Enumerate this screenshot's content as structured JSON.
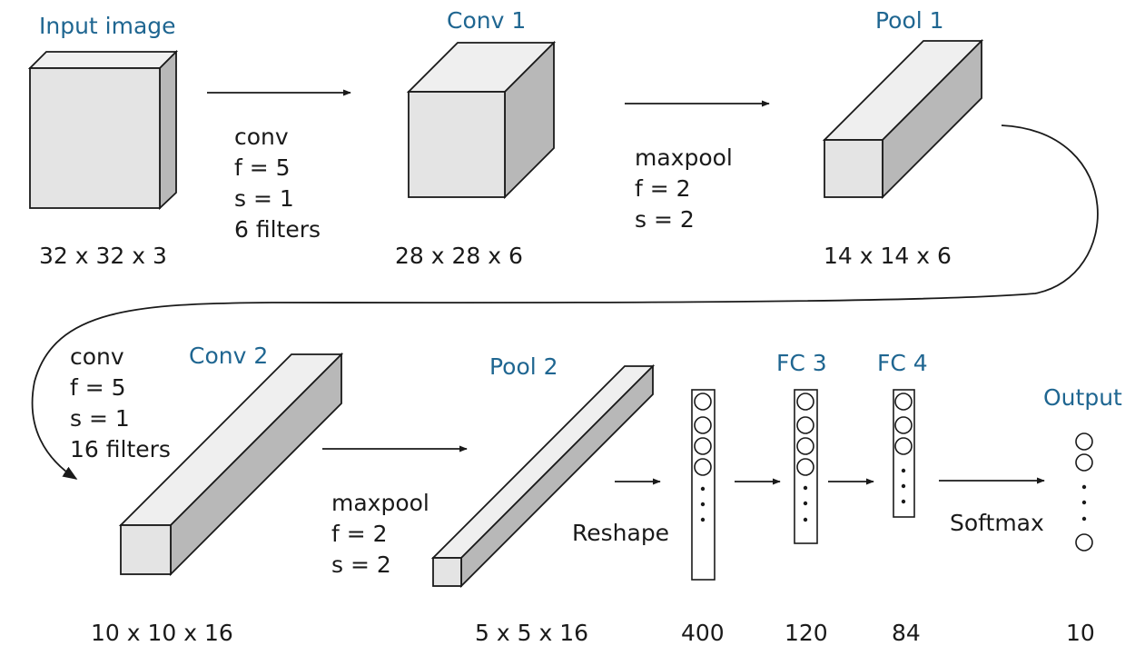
{
  "layers": {
    "input": {
      "title": "Input image",
      "dims": "32 x 32 x 3"
    },
    "conv1": {
      "title": "Conv 1",
      "dims": "28 x 28 x 6"
    },
    "pool1": {
      "title": "Pool 1",
      "dims": "14 x 14 x 6"
    },
    "conv2": {
      "title": "Conv 2",
      "dims": "10 x 10 x 16"
    },
    "pool2": {
      "title": "Pool 2",
      "dims": "5 x 5 x 16"
    },
    "flat": {
      "title": "",
      "dims": "400"
    },
    "fc3": {
      "title": "FC 3",
      "dims": "120"
    },
    "fc4": {
      "title": "FC 4",
      "dims": "84"
    },
    "output": {
      "title": "Output",
      "dims": "10"
    }
  },
  "operations": {
    "op1": {
      "lines": [
        "conv",
        "f = 5",
        "s = 1",
        "6 filters"
      ]
    },
    "op2": {
      "lines": [
        "maxpool",
        "f = 2",
        "s = 2"
      ]
    },
    "op3": {
      "lines": [
        "conv",
        "f = 5",
        "s = 1",
        "16 filters"
      ]
    },
    "op4": {
      "lines": [
        "maxpool",
        "f = 2",
        "s = 2"
      ]
    },
    "op5": {
      "label": "Reshape"
    },
    "op6": {
      "label": "Softmax"
    }
  }
}
